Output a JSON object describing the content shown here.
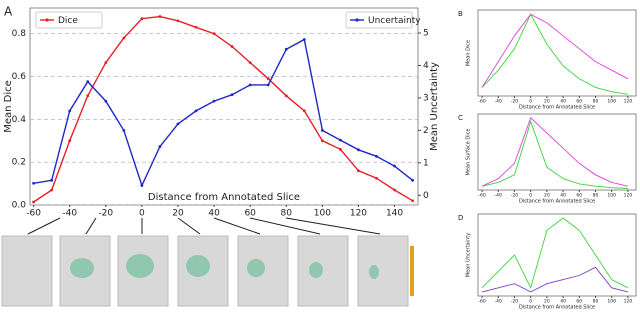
{
  "chart_data": [
    {
      "type": "line",
      "label": "A",
      "xlabel": "Distance from Annotated Slice",
      "ylabel": "Mean Dice",
      "y2label": "Mean Uncertainty",
      "x": [
        -60,
        -50,
        -40,
        -30,
        -20,
        -10,
        0,
        10,
        20,
        30,
        40,
        50,
        60,
        70,
        80,
        90,
        100,
        110,
        120,
        130,
        140,
        150
      ],
      "series": [
        {
          "name": "Dice",
          "color": "#e8202a",
          "values": [
            0.014,
            0.07,
            0.3,
            0.51,
            0.665,
            0.78,
            0.87,
            0.88,
            0.86,
            0.83,
            0.8,
            0.74,
            0.665,
            0.59,
            0.51,
            0.44,
            0.3,
            0.26,
            0.16,
            0.125,
            0.07,
            0.02
          ]
        },
        {
          "name": "Uncertainty",
          "color": "#2028c8",
          "axis": "y2",
          "values": [
            0.37,
            0.46,
            2.6,
            3.5,
            2.9,
            2.0,
            0.3,
            1.5,
            2.2,
            2.6,
            2.9,
            3.1,
            3.4,
            3.4,
            4.5,
            4.8,
            2.0,
            1.7,
            1.4,
            1.2,
            0.9,
            0.46
          ]
        }
      ],
      "xlim": [
        -62,
        153
      ],
      "xticks": [
        -60,
        -40,
        -20,
        0,
        20,
        40,
        60,
        80,
        100,
        120,
        140
      ],
      "ylim": [
        0,
        0.92
      ],
      "yticks": [
        {
          "value": 0,
          "label": "0.0"
        },
        0.2,
        0.4,
        0.6,
        0.8
      ],
      "y2lim": [
        -0.3,
        5.77
      ],
      "y2ticks": [
        0,
        1,
        2,
        3,
        4,
        5
      ],
      "grid": true
    },
    {
      "type": "line",
      "label": "B",
      "xlabel": "Distance from Annotated Slice",
      "ylabel": "Mean Dice",
      "x": [
        -60,
        -40,
        -20,
        0,
        20,
        40,
        60,
        80,
        100,
        120
      ],
      "series": [
        {
          "color": "#3cd43c",
          "values": [
            0.1,
            0.3,
            0.55,
            0.95,
            0.6,
            0.35,
            0.2,
            0.1,
            0.05,
            0.02
          ]
        },
        {
          "color": "#e040e0",
          "values": [
            0.1,
            0.4,
            0.7,
            0.95,
            0.85,
            0.7,
            0.55,
            0.4,
            0.3,
            0.2
          ]
        }
      ],
      "xlim": [
        -65,
        130
      ],
      "xticks": [
        -60,
        -40,
        -20,
        0,
        20,
        40,
        60,
        80,
        100,
        120
      ],
      "ylim": [
        0,
        1
      ]
    },
    {
      "type": "line",
      "label": "C",
      "xlabel": "Distance from Annotated Slice",
      "ylabel": "Mean Surface Dice",
      "x": [
        -60,
        -40,
        -20,
        0,
        20,
        40,
        60,
        80,
        100,
        120
      ],
      "series": [
        {
          "color": "#3cd43c",
          "values": [
            0.05,
            0.1,
            0.2,
            0.9,
            0.3,
            0.15,
            0.08,
            0.05,
            0.03,
            0.02
          ]
        },
        {
          "color": "#e040e0",
          "values": [
            0.05,
            0.15,
            0.35,
            0.95,
            0.75,
            0.55,
            0.35,
            0.2,
            0.1,
            0.05
          ]
        }
      ],
      "xlim": [
        -65,
        130
      ],
      "xticks": [
        -60,
        -40,
        -20,
        0,
        20,
        40,
        60,
        80,
        100,
        120
      ],
      "ylim": [
        0,
        1
      ]
    },
    {
      "type": "line",
      "label": "D",
      "xlabel": "Distance from Annotated Slice",
      "ylabel": "Mean Uncertainty",
      "x": [
        -60,
        -40,
        -20,
        0,
        20,
        40,
        60,
        80,
        100,
        120
      ],
      "series": [
        {
          "color": "#3cd43c",
          "values": [
            0.1,
            0.3,
            0.5,
            0.1,
            0.8,
            0.95,
            0.8,
            0.5,
            0.2,
            0.1
          ]
        },
        {
          "color": "#8040c0",
          "values": [
            0.05,
            0.1,
            0.15,
            0.05,
            0.15,
            0.2,
            0.25,
            0.35,
            0.1,
            0.05
          ]
        }
      ],
      "xlim": [
        -65,
        130
      ],
      "xticks": [
        -60,
        -40,
        -20,
        0,
        20,
        40,
        60,
        80,
        100,
        120
      ],
      "ylim": [
        0,
        1
      ]
    }
  ]
}
